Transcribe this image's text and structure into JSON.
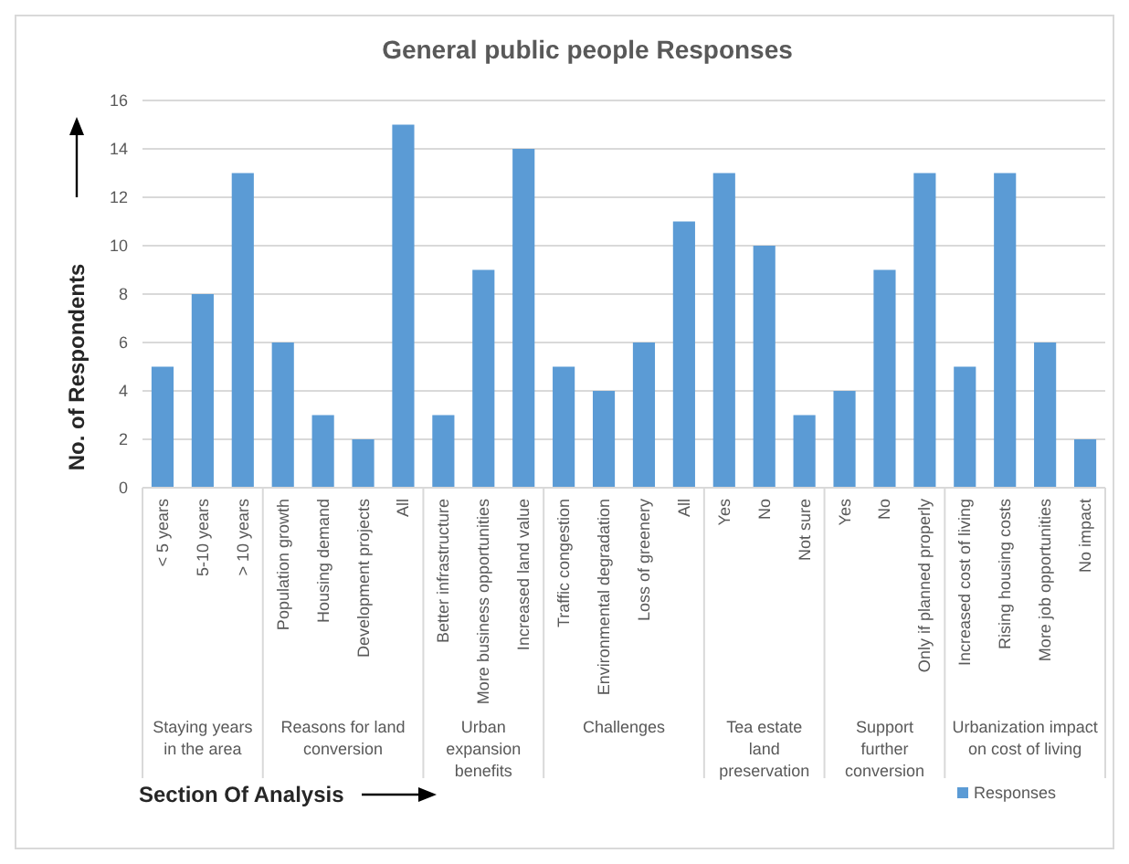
{
  "chart_data": {
    "type": "bar",
    "title": "General public people Responses",
    "xlabel": "Section Of Analysis",
    "ylabel": "No. of Respondents",
    "categories": [
      "< 5 years",
      "5-10 years",
      "> 10 years",
      "Population growth",
      "Housing demand",
      "Development projects",
      "All",
      "Better infrastructure",
      "More business opportunities",
      "Increased land value",
      "Traffic congestion",
      "Environmental degradation",
      "Loss of greenery",
      "All",
      "Yes",
      "No",
      "Not sure",
      "Yes",
      "No",
      "Only if planned properly",
      "Increased cost of living",
      "Rising housing costs",
      "More job opportunities",
      "No impact"
    ],
    "series": [
      {
        "name": "Responses",
        "color": "#5b9bd5",
        "values": [
          5,
          8,
          13,
          6,
          3,
          2,
          15,
          3,
          9,
          14,
          5,
          4,
          6,
          11,
          13,
          10,
          3,
          4,
          9,
          13,
          5,
          13,
          6,
          2
        ]
      }
    ],
    "ylim": [
      0,
      16
    ],
    "yticks": [
      0,
      2,
      4,
      6,
      8,
      10,
      12,
      14,
      16
    ],
    "grid": "y",
    "legend": "bottom right",
    "annotations": [
      "Staying years in the area",
      "Reasons for land conversion",
      "Urban expansion benefits",
      "Challenges",
      "Tea estate land preservation",
      "Support further conversion",
      "Urbanization impact on cost of living"
    ]
  }
}
